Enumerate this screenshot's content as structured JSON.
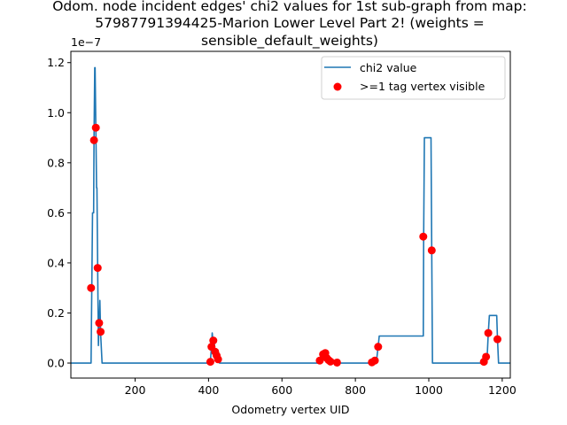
{
  "chart_data": {
    "type": "line",
    "title_lines": [
      "Odom. node incident edges' chi2 values for 1st sub-graph from map:",
      "57987791394425-Marion Lower Level Part 2! (weights =",
      "sensible_default_weights)"
    ],
    "xlabel": "Odometry vertex UID",
    "ylabel": "",
    "y_offset_label": "1e−7",
    "xlim": [
      25,
      1222
    ],
    "ylim": [
      -0.06,
      1.245
    ],
    "x_ticks": [
      200,
      400,
      600,
      800,
      1000,
      1200
    ],
    "x_tick_labels": [
      "200",
      "400",
      "600",
      "800",
      "1000",
      "1200"
    ],
    "y_ticks": [
      0.0,
      0.2,
      0.4,
      0.6,
      0.8,
      1.0,
      1.2
    ],
    "y_tick_labels": [
      "0.0",
      "0.2",
      "0.4",
      "0.6",
      "0.8",
      "1.0",
      "1.2"
    ],
    "legend": {
      "placement": "top-right",
      "entries": [
        {
          "label": "chi2 value",
          "marker": "line",
          "color": "#1f77b4"
        },
        {
          "label": ">=1 tag vertex visible",
          "marker": "dot",
          "color": "#ff0000"
        }
      ]
    },
    "series": [
      {
        "name": "chi2 value",
        "color": "#1f77b4",
        "points": [
          [
            25,
            0
          ],
          [
            80,
            0
          ],
          [
            82,
            0.3
          ],
          [
            84,
            0.6
          ],
          [
            87,
            0.6
          ],
          [
            88,
            0.89
          ],
          [
            90,
            1.18
          ],
          [
            91,
            1.18
          ],
          [
            93,
            0.94
          ],
          [
            95,
            0.7
          ],
          [
            96,
            0.7
          ],
          [
            98,
            0.38
          ],
          [
            100,
            0.07
          ],
          [
            102,
            0.16
          ],
          [
            104,
            0.25
          ],
          [
            106,
            0.12
          ],
          [
            110,
            0
          ],
          [
            400,
            0
          ],
          [
            405,
            0.005
          ],
          [
            408,
            0.065
          ],
          [
            410,
            0.12
          ],
          [
            412,
            0.09
          ],
          [
            415,
            0.09
          ],
          [
            418,
            0.045
          ],
          [
            422,
            0.03
          ],
          [
            426,
            0.015
          ],
          [
            430,
            0
          ],
          [
            700,
            0
          ],
          [
            703,
            0.01
          ],
          [
            708,
            0.02
          ],
          [
            712,
            0.04
          ],
          [
            718,
            0.04
          ],
          [
            722,
            0.02
          ],
          [
            728,
            0.015
          ],
          [
            732,
            0.008
          ],
          [
            740,
            0.003
          ],
          [
            750,
            0.001
          ],
          [
            760,
            0
          ],
          [
            845,
            0
          ],
          [
            848,
            0.005
          ],
          [
            853,
            0.01
          ],
          [
            858,
            0.015
          ],
          [
            862,
            0.065
          ],
          [
            865,
            0.108
          ],
          [
            985,
            0.108
          ],
          [
            986,
            0.505
          ],
          [
            988,
            0.9
          ],
          [
            1006,
            0.9
          ],
          [
            1008,
            0.45
          ],
          [
            1010,
            0
          ],
          [
            1150,
            0
          ],
          [
            1152,
            0.005
          ],
          [
            1156,
            0.015
          ],
          [
            1159,
            0.025
          ],
          [
            1162,
            0.12
          ],
          [
            1165,
            0.19
          ],
          [
            1185,
            0.19
          ],
          [
            1187,
            0.1
          ],
          [
            1190,
            0
          ],
          [
            1222,
            0
          ]
        ]
      },
      {
        "name": ">=1 tag vertex visible",
        "color": "#ff0000",
        "points": [
          [
            80,
            0.3
          ],
          [
            88,
            0.89
          ],
          [
            93,
            0.94
          ],
          [
            98,
            0.38
          ],
          [
            102,
            0.16
          ],
          [
            106,
            0.125
          ],
          [
            405,
            0.005
          ],
          [
            408,
            0.065
          ],
          [
            413,
            0.09
          ],
          [
            418,
            0.045
          ],
          [
            422,
            0.03
          ],
          [
            426,
            0.015
          ],
          [
            703,
            0.01
          ],
          [
            712,
            0.035
          ],
          [
            718,
            0.04
          ],
          [
            722,
            0.02
          ],
          [
            727,
            0.012
          ],
          [
            732,
            0.006
          ],
          [
            750,
            0.002
          ],
          [
            845,
            0.003
          ],
          [
            853,
            0.01
          ],
          [
            862,
            0.065
          ],
          [
            985,
            0.505
          ],
          [
            1008,
            0.45
          ],
          [
            1150,
            0.005
          ],
          [
            1156,
            0.025
          ],
          [
            1162,
            0.12
          ],
          [
            1187,
            0.095
          ]
        ]
      }
    ]
  }
}
